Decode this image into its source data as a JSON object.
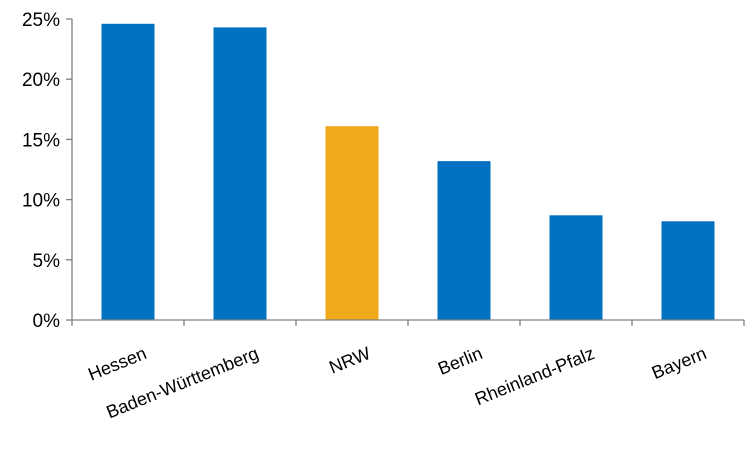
{
  "chart_data": {
    "type": "bar",
    "title": "",
    "xlabel": "",
    "ylabel": "",
    "categories": [
      "Hessen",
      "Baden-Württemberg",
      "NRW",
      "Berlin",
      "Rheinland-Pfalz",
      "Bayern"
    ],
    "values": [
      24.6,
      24.3,
      16.1,
      13.2,
      8.7,
      8.2
    ],
    "ylim": [
      0,
      25
    ],
    "yticks": [
      0,
      5,
      10,
      15,
      20,
      25
    ],
    "ytick_labels": [
      "0%",
      "5%",
      "10%",
      "15%",
      "20%",
      "25%"
    ],
    "grid": false,
    "legend": "none",
    "colors": {
      "default": "#0070C0",
      "highlight": "#F0A81C",
      "axis": "#808080"
    },
    "highlight_category": "NRW"
  }
}
